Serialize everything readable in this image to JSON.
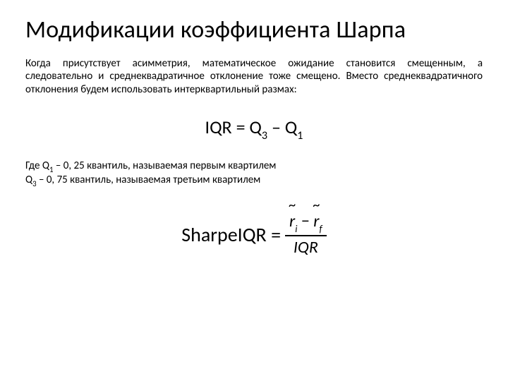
{
  "title": "Модификации коэффициента Шарпа",
  "body": "Когда присутствует асимметрия, математическое ожидание становится смещенным, а следовательно и среднеквадратичное отклонение тоже смещено. Вместо среднеквадратичного отклонения будем использовать интерквартильный размах:",
  "formula1": {
    "lhs": "IQR",
    "eq": " = ",
    "q3": "Q",
    "q3_sub": "3",
    "minus": " – ",
    "q1": "Q",
    "q1_sub": "1"
  },
  "notes": {
    "line1_a": "Где Q",
    "line1_sub": "1",
    "line1_b": " – 0, 25 квантиль, называемая первым квартилем",
    "line2_a": "Q",
    "line2_sub": "3",
    "line2_b": " – 0, 75 квантиль, называемая третьим квартилем"
  },
  "formula2": {
    "lhs": "SharpeIQR = ",
    "num_r1": "r",
    "num_sub1": "i",
    "num_minus": " − ",
    "num_r2": "r",
    "num_sub2": "f",
    "den": "IQR"
  },
  "style": {
    "background": "#ffffff",
    "text_color": "#000000",
    "title_fontsize": 34,
    "body_fontsize": 15,
    "formula1_fontsize": 26,
    "formula2_fontsize": 28,
    "font_family": "Calibri"
  }
}
